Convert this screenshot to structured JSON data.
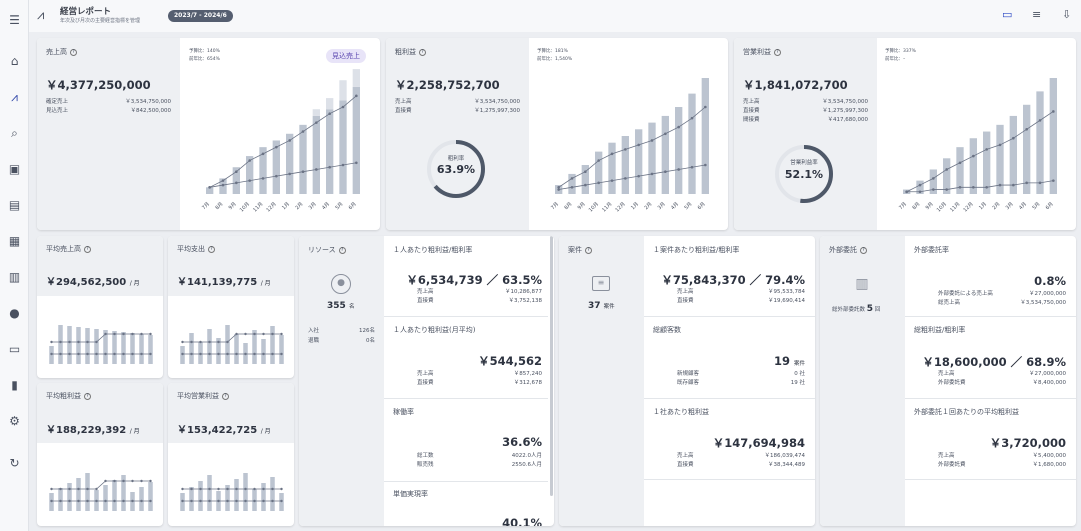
{
  "header": {
    "title": "経営レポート",
    "subtitle": "年次及び月次の主要経営指標を管理",
    "period": "2023/7 - 2024/6"
  },
  "rail": [
    "menu-icon",
    "home-icon",
    "chart-icon",
    "search-doc-icon",
    "clipboard-icon",
    "list-icon",
    "table-icon",
    "building-icon",
    "person-icon",
    "card-icon",
    "bar-chart-icon",
    "gear-icon",
    "refresh-icon"
  ],
  "topright": [
    "monitor-icon",
    "list-icon",
    "download-icon"
  ],
  "colors": {
    "bar": "#bcc4d0",
    "bar_light": "#dde1e8",
    "line": "#6b7385",
    "accent_badge": "#e8e4f8",
    "badge_text": "#5b47b0"
  },
  "months": [
    "7月",
    "8月",
    "9月",
    "10月",
    "11月",
    "12月",
    "1月",
    "2月",
    "3月",
    "4月",
    "5月",
    "6月"
  ],
  "sales": {
    "title": "売上高",
    "value": "￥4,377,250,000",
    "rows": [
      [
        "確定売上",
        "￥3,534,750,000"
      ],
      [
        "見込売上",
        "￥842,500,000"
      ]
    ],
    "ratio1": "予算比：140%",
    "ratio2": "前年比：654%",
    "badge": "見込売上",
    "chart_data": {
      "type": "bar",
      "x": [
        "7月",
        "8月",
        "9月",
        "10月",
        "11月",
        "12月",
        "1月",
        "2月",
        "3月",
        "4月",
        "5月",
        "6月"
      ],
      "series": [
        {
          "values": [
            3,
            7,
            12,
            17,
            21,
            24,
            27,
            31,
            35,
            38,
            42,
            48
          ]
        },
        {
          "values": [
            0,
            0,
            0,
            0,
            0,
            0,
            0,
            0,
            3,
            5,
            9,
            8
          ]
        },
        {
          "values": [
            3,
            6,
            10,
            15,
            18,
            21,
            24,
            28,
            32,
            36,
            39,
            44
          ]
        },
        {
          "values": [
            3,
            4,
            5,
            6,
            7,
            8,
            9,
            10,
            11,
            12,
            13,
            14
          ]
        }
      ]
    }
  },
  "gross": {
    "title": "粗利益",
    "value": "￥2,258,752,700",
    "rows": [
      [
        "売上高",
        "￥3,534,750,000"
      ],
      [
        "直接費",
        "￥1,275,997,300"
      ]
    ],
    "ratio1": "予算比：181%",
    "ratio2": "前年比：1,540%",
    "ring_label": "粗利率",
    "ring_value": "63.9%",
    "ring_pct": 63.9,
    "chart_data": {
      "type": "bar",
      "x": [
        "7月",
        "8月",
        "9月",
        "10月",
        "11月",
        "12月",
        "1月",
        "2月",
        "3月",
        "4月",
        "5月",
        "6月"
      ],
      "series": [
        {
          "values": [
            4,
            9,
            13,
            19,
            23,
            26,
            29,
            32,
            35,
            39,
            45,
            52
          ]
        },
        {
          "values": [
            3,
            7,
            10,
            15,
            18,
            20,
            22,
            24,
            27,
            30,
            34,
            39
          ]
        },
        {
          "values": [
            2,
            3,
            4,
            5,
            6,
            7,
            8,
            9,
            10,
            11,
            12,
            13
          ]
        }
      ]
    }
  },
  "op": {
    "title": "営業利益",
    "value": "￥1,841,072,700",
    "rows": [
      [
        "売上高",
        "￥3,534,750,000"
      ],
      [
        "直接費",
        "￥1,275,997,300"
      ],
      [
        "間接費",
        "￥417,680,000"
      ]
    ],
    "ratio1": "予算比：337%",
    "ratio2": "前年比：–",
    "ring_label": "営業利益率",
    "ring_value": "52.1%",
    "ring_pct": 52.1,
    "chart_data": {
      "type": "bar",
      "x": [
        "7月",
        "8月",
        "9月",
        "10月",
        "11月",
        "12月",
        "1月",
        "2月",
        "3月",
        "4月",
        "5月",
        "6月"
      ],
      "series": [
        {
          "values": [
            2,
            6,
            11,
            16,
            21,
            25,
            28,
            31,
            35,
            40,
            46,
            52
          ]
        },
        {
          "values": [
            1,
            4,
            7,
            11,
            14,
            17,
            20,
            22,
            25,
            29,
            33,
            37
          ]
        },
        {
          "values": [
            1,
            1,
            2,
            2,
            3,
            3,
            3,
            4,
            4,
            5,
            5,
            6
          ]
        }
      ]
    }
  },
  "avg_sales": {
    "title": "平均売上高",
    "value": "￥294,562,500",
    "unit": "/ 月"
  },
  "avg_spend": {
    "title": "平均支出",
    "value": "￥141,139,775",
    "unit": "/ 月"
  },
  "avg_gross": {
    "title": "平均粗利益",
    "value": "￥188,229,392",
    "unit": "/ 月"
  },
  "avg_op": {
    "title": "平均営業利益",
    "value": "￥153,422,725",
    "unit": "/ 月"
  },
  "resource": {
    "title": "リソース",
    "count": "355",
    "unit": "名",
    "rows": [
      [
        "入社",
        "126名"
      ],
      [
        "退職",
        "0名"
      ]
    ],
    "s1": {
      "title": "１人あたり粗利益/粗利率",
      "value": "￥6,534,739 ／ 63.5%",
      "rows": [
        [
          "売上高",
          "￥10,286,877"
        ],
        [
          "直接費",
          "￥3,752,138"
        ]
      ]
    },
    "s2": {
      "title": "１人あたり粗利益(月平均)",
      "value": "￥544,562",
      "rows": [
        [
          "売上高",
          "￥857,240"
        ],
        [
          "直接費",
          "￥312,678"
        ]
      ]
    },
    "s3": {
      "title": "稼働率",
      "value": "36.6%",
      "rows": [
        [
          "総工数",
          "4022.0人月"
        ],
        [
          "販売残",
          "2550.6人月"
        ]
      ]
    },
    "s4": {
      "title": "単価実現率",
      "value": "40.1%"
    }
  },
  "project": {
    "title": "案件",
    "count": "37",
    "unit": "案件",
    "s1": {
      "title": "１案件あたり粗利益/粗利率",
      "value": "￥75,843,370 ／ 79.4%",
      "rows": [
        [
          "売上高",
          "￥95,533,784"
        ],
        [
          "直接費",
          "￥19,690,414"
        ]
      ]
    },
    "s2": {
      "title": "総顧客数",
      "value": "19",
      "unit": "案件",
      "rows": [
        [
          "新規顧客",
          "0 社"
        ],
        [
          "既存顧客",
          "19 社"
        ]
      ]
    },
    "s3": {
      "title": "１社あたり粗利益",
      "value": "￥147,694,984",
      "rows": [
        [
          "売上高",
          "￥186,039,474"
        ],
        [
          "直接費",
          "￥38,344,489"
        ]
      ]
    }
  },
  "outsource": {
    "title": "外部委託",
    "count_label": "総外部委託数",
    "count": "5",
    "unit": "回",
    "s1": {
      "title": "外部委託率",
      "value": "0.8%",
      "rows": [
        [
          "外部委託による売上高",
          "￥27,000,000"
        ],
        [
          "総売上高",
          "￥3,534,750,000"
        ]
      ]
    },
    "s2": {
      "title": "総粗利益/粗利率",
      "value": "￥18,600,000 ／ 68.9%",
      "rows": [
        [
          "売上高",
          "￥27,000,000"
        ],
        [
          "外部委託費",
          "￥8,400,000"
        ]
      ]
    },
    "s3": {
      "title": "外部委託１回あたりの平均粗利益",
      "value": "￥3,720,000",
      "rows": [
        [
          "売上高",
          "￥5,400,000"
        ],
        [
          "外部委託費",
          "￥1,680,000"
        ]
      ]
    }
  }
}
